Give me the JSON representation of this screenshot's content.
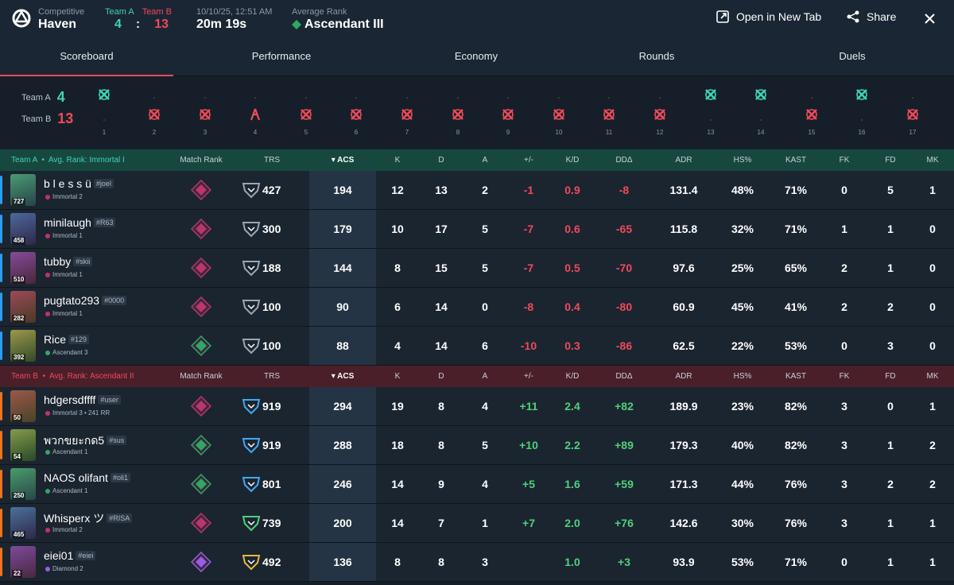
{
  "header": {
    "mode_label": "Competitive",
    "map": "Haven",
    "team_a_label": "Team A",
    "team_b_label": "Team B",
    "team_a_score": "4",
    "team_b_score": "13",
    "score_sep": ":",
    "datetime": "10/10/25, 12:51 AM",
    "duration": "20m 19s",
    "avg_rank_label": "Average Rank",
    "avg_rank": "Ascendant III",
    "open_tab": "Open in New Tab",
    "share": "Share"
  },
  "tabs": [
    "Scoreboard",
    "Performance",
    "Economy",
    "Rounds",
    "Duels"
  ],
  "timeline": {
    "team_a_label": "Team A",
    "team_b_label": "Team B",
    "team_a_score": "4",
    "team_b_score": "13",
    "rounds": [
      {
        "n": "1",
        "winner": "A"
      },
      {
        "n": "2",
        "winner": "B"
      },
      {
        "n": "3",
        "winner": "B"
      },
      {
        "n": "4",
        "winner": "B",
        "type": "defuse"
      },
      {
        "n": "5",
        "winner": "B"
      },
      {
        "n": "6",
        "winner": "B"
      },
      {
        "n": "7",
        "winner": "B"
      },
      {
        "n": "8",
        "winner": "B"
      },
      {
        "n": "9",
        "winner": "B"
      },
      {
        "n": "10",
        "winner": "B"
      },
      {
        "n": "11",
        "winner": "B"
      },
      {
        "n": "12",
        "winner": "B"
      },
      {
        "n": "13",
        "winner": "A"
      },
      {
        "n": "14",
        "winner": "A"
      },
      {
        "n": "15",
        "winner": "B"
      },
      {
        "n": "16",
        "winner": "A"
      },
      {
        "n": "17",
        "winner": "B"
      }
    ]
  },
  "columns": [
    "Match Rank",
    "TRS",
    "ACS",
    "K",
    "D",
    "A",
    "+/-",
    "K/D",
    "DDΔ",
    "ADR",
    "HS%",
    "KAST",
    "FK",
    "FD",
    "MK"
  ],
  "team_a": {
    "name": "Team A",
    "avg_label": "Avg. Rank:",
    "avg_rank": "Immortal I",
    "players": [
      {
        "name": "b l e s s ü",
        "tag": "#joel",
        "rank": "Immortal 2",
        "level": "727",
        "trs": "427",
        "acs": "194",
        "k": "12",
        "d": "13",
        "a": "2",
        "pm": "-1",
        "kd": "0.9",
        "dd": "-8",
        "adr": "131.4",
        "hs": "48%",
        "kast": "71%",
        "fk": "0",
        "fd": "5",
        "mk": "1",
        "rank_color": "#c0336d"
      },
      {
        "name": "minilaugh",
        "tag": "#R63",
        "rank": "Immortal 1",
        "level": "458",
        "trs": "300",
        "acs": "179",
        "k": "10",
        "d": "17",
        "a": "5",
        "pm": "-7",
        "kd": "0.6",
        "dd": "-65",
        "adr": "115.8",
        "hs": "32%",
        "kast": "71%",
        "fk": "1",
        "fd": "1",
        "mk": "0",
        "rank_color": "#c0336d"
      },
      {
        "name": "tubby",
        "tag": "#skii",
        "rank": "Immortal 1",
        "level": "510",
        "trs": "188",
        "acs": "144",
        "k": "8",
        "d": "15",
        "a": "5",
        "pm": "-7",
        "kd": "0.5",
        "dd": "-70",
        "adr": "97.6",
        "hs": "25%",
        "kast": "65%",
        "fk": "2",
        "fd": "1",
        "mk": "0",
        "rank_color": "#c0336d"
      },
      {
        "name": "pugtato293",
        "tag": "#0000",
        "rank": "Immortal 1",
        "level": "282",
        "trs": "100",
        "acs": "90",
        "k": "6",
        "d": "14",
        "a": "0",
        "pm": "-8",
        "kd": "0.4",
        "dd": "-80",
        "adr": "60.9",
        "hs": "45%",
        "kast": "41%",
        "fk": "2",
        "fd": "2",
        "mk": "0",
        "rank_color": "#c0336d"
      },
      {
        "name": "Rice",
        "tag": "#129",
        "rank": "Ascendant 3",
        "level": "392",
        "trs": "100",
        "acs": "88",
        "k": "4",
        "d": "14",
        "a": "6",
        "pm": "-10",
        "kd": "0.3",
        "dd": "-86",
        "adr": "62.5",
        "hs": "22%",
        "kast": "53%",
        "fk": "0",
        "fd": "3",
        "mk": "0",
        "rank_color": "#2fa866"
      }
    ]
  },
  "team_b": {
    "name": "Team B",
    "avg_label": "Avg. Rank:",
    "avg_rank": "Ascendant II",
    "players": [
      {
        "name": "hdgersdffff",
        "tag": "#user",
        "rank": "Immortal 3 • 241 RR",
        "level": "50",
        "trs": "919",
        "acs": "294",
        "k": "19",
        "d": "8",
        "a": "4",
        "pm": "+11",
        "kd": "2.4",
        "dd": "+82",
        "adr": "189.9",
        "hs": "23%",
        "kast": "82%",
        "fk": "3",
        "fd": "0",
        "mk": "1",
        "rank_color": "#c0336d"
      },
      {
        "name": "พวกขยะกด5",
        "tag": "#sus",
        "rank": "Ascendant 1",
        "level": "54",
        "trs": "919",
        "acs": "288",
        "k": "18",
        "d": "8",
        "a": "5",
        "pm": "+10",
        "kd": "2.2",
        "dd": "+89",
        "adr": "179.3",
        "hs": "40%",
        "kast": "82%",
        "fk": "3",
        "fd": "1",
        "mk": "2",
        "rank_color": "#2fa866"
      },
      {
        "name": "NAOS olifant",
        "tag": "#oli1",
        "rank": "Ascendant 1",
        "level": "250",
        "trs": "801",
        "acs": "246",
        "k": "14",
        "d": "9",
        "a": "4",
        "pm": "+5",
        "kd": "1.6",
        "dd": "+59",
        "adr": "171.3",
        "hs": "44%",
        "kast": "76%",
        "fk": "3",
        "fd": "2",
        "mk": "2",
        "rank_color": "#2fa866"
      },
      {
        "name": "Whisperx ツ",
        "tag": "#RISA",
        "rank": "Immortal 2",
        "level": "465",
        "trs": "739",
        "acs": "200",
        "k": "14",
        "d": "7",
        "a": "1",
        "pm": "+7",
        "kd": "2.0",
        "dd": "+76",
        "adr": "142.6",
        "hs": "30%",
        "kast": "76%",
        "fk": "3",
        "fd": "1",
        "mk": "1",
        "rank_color": "#c0336d"
      },
      {
        "name": "eiei01",
        "tag": "#eiei",
        "rank": "Diamond 2",
        "level": "22",
        "trs": "492",
        "acs": "136",
        "k": "8",
        "d": "8",
        "a": "3",
        "pm": "",
        "kd": "1.0",
        "dd": "+3",
        "adr": "93.9",
        "hs": "53%",
        "kast": "71%",
        "fk": "0",
        "fd": "1",
        "mk": "1",
        "rank_color": "#9b5de5"
      }
    ]
  },
  "colors": {
    "team_a": "#3fd3b5",
    "team_b": "#ef4a5a",
    "positive": "#4fd17a",
    "negative": "#ef4a5a"
  }
}
